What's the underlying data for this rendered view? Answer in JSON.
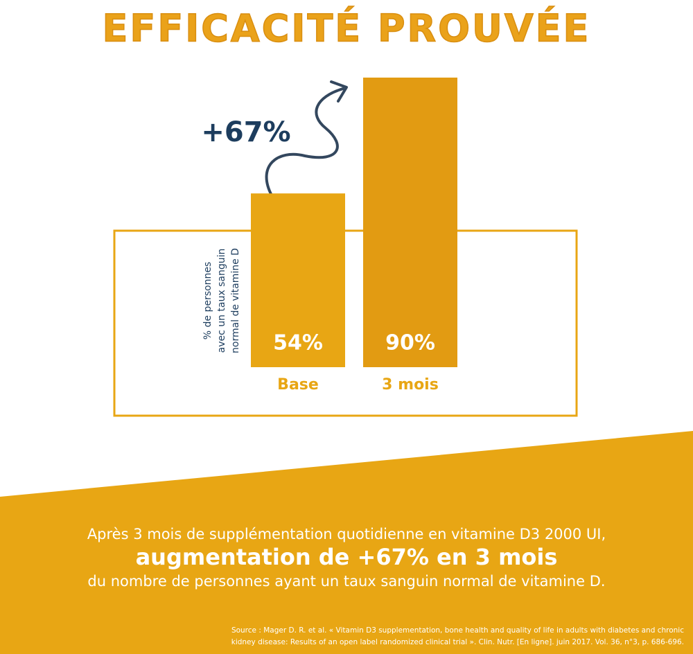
{
  "chart_data": {
    "type": "bar",
    "title": "EFFICACITÉ PROUVÉE",
    "categories": [
      "Base",
      "3 mois"
    ],
    "values": [
      54,
      90
    ],
    "value_labels": [
      "54%",
      "90%"
    ],
    "colors": [
      "#e8a614",
      "#e29b12"
    ],
    "y_label": [
      "% de personnes",
      "avec un taux sanguin",
      "normal de vitamine D"
    ],
    "annotation": "+67%"
  },
  "footer": {
    "lines": [
      "Après 3 mois de supplémentation quotidienne en vitamine D3 2000 UI,",
      "augmentation de +67% en 3 mois",
      "du nombre de personnes ayant un taux sanguin normal de vitamine D."
    ],
    "source": [
      "Source :  Mager D. R. et al. « Vitamin D3 supplementation, bone health and quality of life in adults with diabetes and chronic",
      "kidney disease: Results of an open label randomized clinical trial ». Clin. Nutr. [En ligne]. juin 2017. Vol. 36, n°3, p. 686-696."
    ]
  }
}
